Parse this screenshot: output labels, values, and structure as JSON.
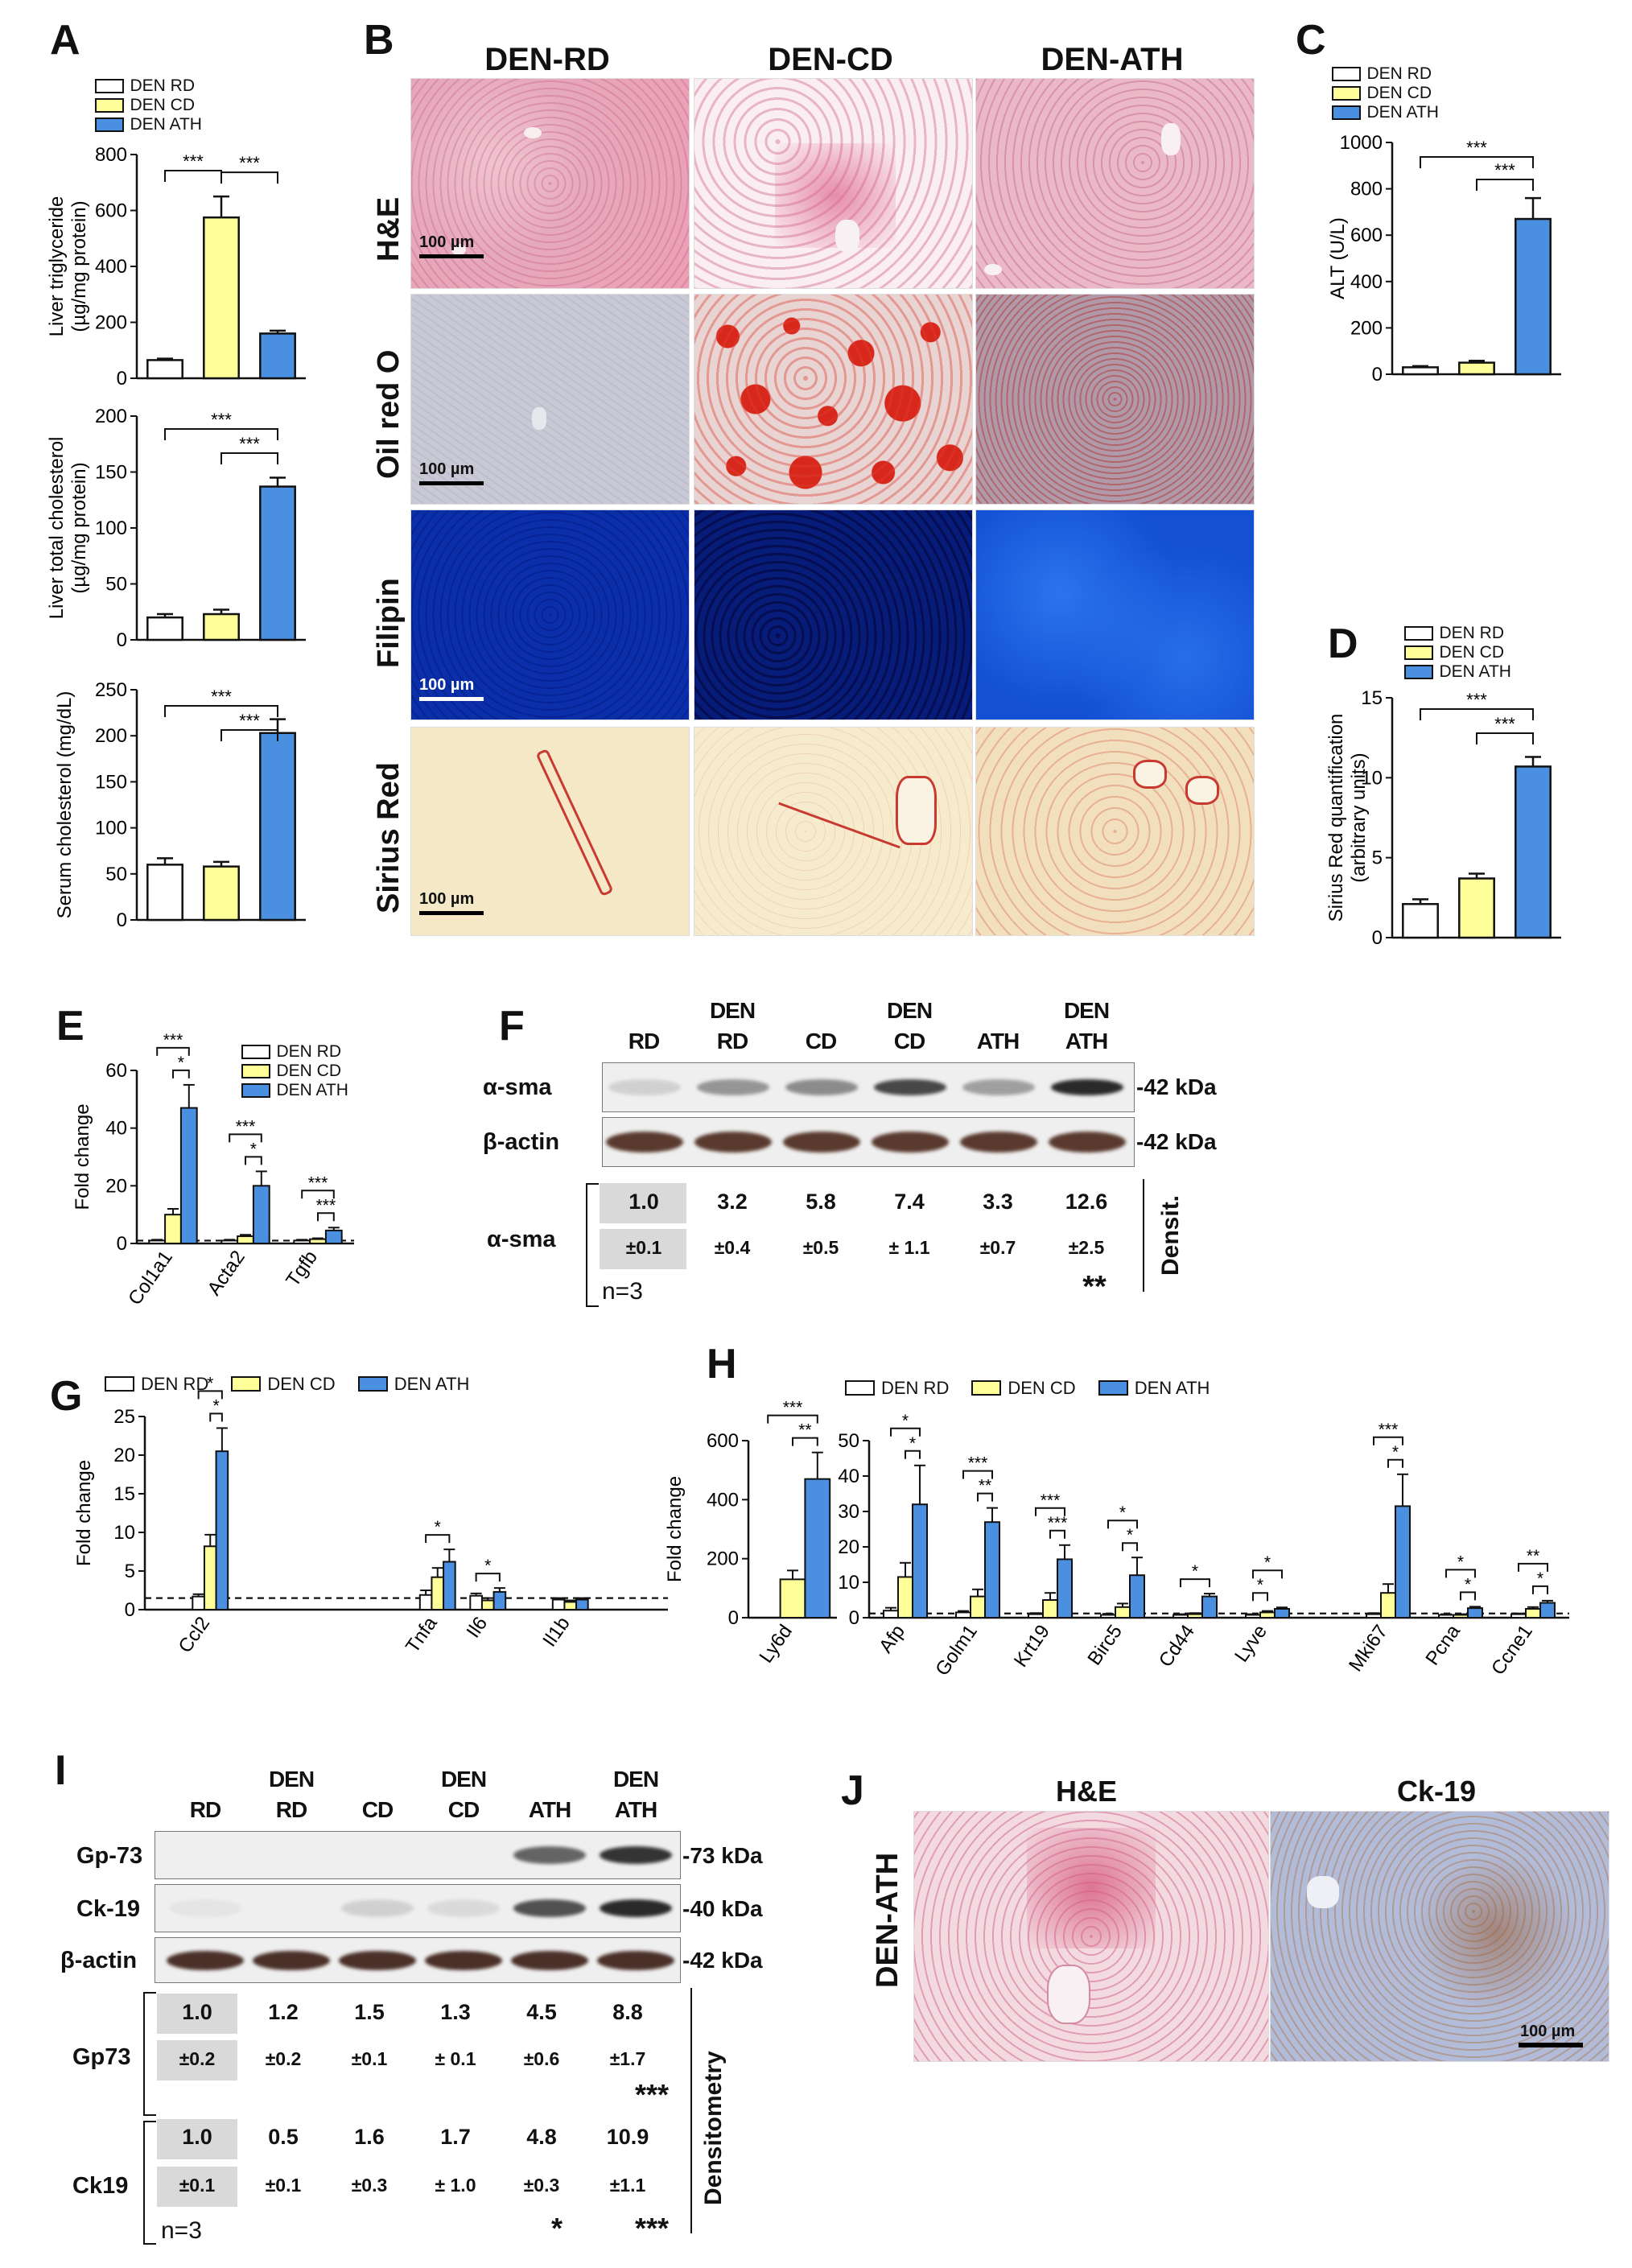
{
  "panels": {
    "A": "A",
    "B": "B",
    "C": "C",
    "D": "D",
    "E": "E",
    "F": "F",
    "G": "G",
    "H": "H",
    "I": "I",
    "J": "J"
  },
  "colors": {
    "rd": "#ffffff",
    "cd": "#ffff99",
    "ath": "#4a8fe0",
    "stroke": "#111111"
  },
  "legend3": [
    "DEN RD",
    "DEN CD",
    "DEN ATH"
  ],
  "legend_ef": [
    "DEN RD",
    "DEN CD",
    "DEN ATH"
  ],
  "legend_gh": [
    "DEN RD",
    "DEN CD",
    "DEN ATH"
  ],
  "B": {
    "columns": [
      "DEN-RD",
      "DEN-CD",
      "DEN-ATH"
    ],
    "rows": [
      "H&E",
      "Oil red O",
      "Filipin",
      "Sirius Red"
    ],
    "scale": "100 µm"
  },
  "F": {
    "lanes": [
      "RD",
      "DEN\nRD",
      "CD",
      "DEN\nCD",
      "ATH",
      "DEN\nATH"
    ],
    "lane_top": [
      "",
      "DEN",
      "",
      "DEN",
      "",
      "DEN"
    ],
    "lane_bottom": [
      "RD",
      "RD",
      "CD",
      "CD",
      "ATH",
      "ATH"
    ],
    "row_labels": [
      "α-sma",
      "β-actin"
    ],
    "kda": [
      "-42 kDa",
      "-42 kDa"
    ],
    "dens_label": "α-sma",
    "values": [
      "1.0",
      "3.2",
      "5.8",
      "7.4",
      "3.3",
      "12.6"
    ],
    "errors": [
      "±0.1",
      "±0.4",
      "±0.5",
      "± 1.1",
      "±0.7",
      "±2.5"
    ],
    "n": "n=3",
    "sig": "**",
    "side": "Densit.",
    "band_intensity": [
      0.15,
      0.45,
      0.5,
      0.85,
      0.4,
      1.0
    ]
  },
  "I": {
    "lane_top": [
      "",
      "DEN",
      "",
      "DEN",
      "",
      "DEN"
    ],
    "lane_bottom": [
      "RD",
      "RD",
      "CD",
      "CD",
      "ATH",
      "ATH"
    ],
    "row_labels": [
      "Gp-73",
      "Ck-19",
      "β-actin"
    ],
    "kda": [
      "-73 kDa",
      "-40 kDa",
      "-42 kDa"
    ],
    "gp_label": "Gp73",
    "ck_label": "Ck19",
    "gp_values": [
      "1.0",
      "1.2",
      "1.5",
      "1.3",
      "4.5",
      "8.8"
    ],
    "gp_errors": [
      "±0.2",
      "±0.2",
      "±0.1",
      "± 0.1",
      "±0.6",
      "±1.7"
    ],
    "gp_sig": "***",
    "ck_values": [
      "1.0",
      "0.5",
      "1.6",
      "1.7",
      "4.8",
      "10.9"
    ],
    "ck_errors": [
      "±0.1",
      "±0.1",
      "±0.3",
      "± 1.0",
      "±0.3",
      "±1.1"
    ],
    "ck_sig_ath": "*",
    "ck_sig_denath": "***",
    "n": "n=3",
    "side": "Densitometry",
    "gp_intensity": [
      0,
      0,
      0,
      0,
      0.7,
      0.95
    ],
    "ck_intensity": [
      0.05,
      0,
      0.15,
      0.1,
      0.8,
      1.0
    ]
  },
  "J": {
    "cols": [
      "H&E",
      "Ck-19"
    ],
    "row": "DEN-ATH",
    "scale": "100 µm"
  },
  "chart_data": [
    {
      "id": "A1",
      "type": "bar",
      "categories": [
        "DEN RD",
        "DEN CD",
        "DEN ATH"
      ],
      "values": [
        65,
        575,
        160
      ],
      "errors": [
        5,
        75,
        10
      ],
      "ylabel": [
        "Liver triglyceride",
        "(µg/mg protein)"
      ],
      "ylim": [
        0,
        800
      ],
      "yticks": [
        0,
        200,
        400,
        600,
        800
      ],
      "sig": [
        {
          "a": 0,
          "b": 1,
          "label": "***"
        },
        {
          "a": 1,
          "b": 2,
          "label": "***"
        }
      ]
    },
    {
      "id": "A2",
      "type": "bar",
      "categories": [
        "DEN RD",
        "DEN CD",
        "DEN ATH"
      ],
      "values": [
        20,
        23,
        137
      ],
      "errors": [
        3,
        4,
        8
      ],
      "ylabel": [
        "Liver total cholesterol",
        "(µg/mg protein)"
      ],
      "ylim": [
        0,
        200
      ],
      "yticks": [
        0,
        50,
        100,
        150,
        200
      ],
      "sig": [
        {
          "a": 0,
          "b": 2,
          "label": "***"
        },
        {
          "a": 1,
          "b": 2,
          "label": "***"
        }
      ]
    },
    {
      "id": "A3",
      "type": "bar",
      "categories": [
        "DEN RD",
        "DEN CD",
        "DEN ATH"
      ],
      "values": [
        60,
        58,
        203
      ],
      "errors": [
        7,
        5,
        15
      ],
      "ylabel": [
        "Serum cholesterol (mg/dL)"
      ],
      "ylim": [
        0,
        250
      ],
      "yticks": [
        0,
        50,
        100,
        150,
        200,
        250
      ],
      "sig": [
        {
          "a": 0,
          "b": 2,
          "label": "***"
        },
        {
          "a": 1,
          "b": 2,
          "label": "***"
        }
      ]
    },
    {
      "id": "C",
      "type": "bar",
      "categories": [
        "DEN RD",
        "DEN CD",
        "DEN ATH"
      ],
      "values": [
        30,
        50,
        670
      ],
      "errors": [
        5,
        8,
        90
      ],
      "ylabel": [
        "ALT  (U/L)"
      ],
      "ylim": [
        0,
        1000
      ],
      "yticks": [
        0,
        200,
        400,
        600,
        800,
        1000
      ],
      "sig": [
        {
          "a": 0,
          "b": 2,
          "label": "***"
        },
        {
          "a": 1,
          "b": 2,
          "label": "***"
        }
      ]
    },
    {
      "id": "D",
      "type": "bar",
      "categories": [
        "DEN RD",
        "DEN CD",
        "DEN ATH"
      ],
      "values": [
        2.1,
        3.7,
        10.7
      ],
      "errors": [
        0.3,
        0.3,
        0.6
      ],
      "ylabel": [
        "Sirius Red quantification",
        "(arbitrary units)"
      ],
      "ylim": [
        0,
        15
      ],
      "yticks": [
        0,
        5,
        10,
        15
      ],
      "sig": [
        {
          "a": 0,
          "b": 2,
          "label": "***"
        },
        {
          "a": 1,
          "b": 2,
          "label": "***"
        }
      ]
    },
    {
      "id": "E",
      "type": "bar",
      "categories": [
        "Col1a1",
        "Acta2",
        "Tgfb"
      ],
      "series": [
        {
          "name": "DEN RD",
          "values": [
            1,
            1,
            1
          ],
          "errors": [
            0.3,
            0.3,
            0.3
          ]
        },
        {
          "name": "DEN CD",
          "values": [
            10,
            2.5,
            1.5
          ],
          "errors": [
            2,
            0.5,
            0.3
          ]
        },
        {
          "name": "DEN ATH",
          "values": [
            47,
            20,
            4.5
          ],
          "errors": [
            8,
            5,
            1
          ]
        }
      ],
      "ylabel": "Fold change",
      "ylim": [
        0,
        60
      ],
      "yticks": [
        0,
        20,
        40,
        60
      ],
      "baseline": 1,
      "sig": [
        {
          "g": 0,
          "pairs": [
            [
              "RD",
              "ATH",
              "***"
            ],
            [
              "CD",
              "ATH",
              "*"
            ]
          ]
        },
        {
          "g": 1,
          "pairs": [
            [
              "RD",
              "ATH",
              "***"
            ],
            [
              "CD",
              "ATH",
              "*"
            ]
          ]
        },
        {
          "g": 2,
          "pairs": [
            [
              "RD",
              "ATH",
              "***"
            ],
            [
              "CD",
              "ATH",
              "***"
            ]
          ]
        }
      ]
    },
    {
      "id": "G",
      "type": "bar",
      "categories": [
        "Ccl2",
        "Tnfa",
        "Il6",
        "Il1b"
      ],
      "series": [
        {
          "name": "DEN RD",
          "values": [
            1.7,
            1.9,
            1.8,
            1.3
          ],
          "errors": [
            0.3,
            0.6,
            0.3,
            0.2
          ]
        },
        {
          "name": "DEN CD",
          "values": [
            8.2,
            4.2,
            1.2,
            1.0
          ],
          "errors": [
            1.5,
            1.2,
            0.3,
            0.2
          ]
        },
        {
          "name": "DEN ATH",
          "values": [
            20.5,
            6.2,
            2.3,
            1.3
          ],
          "errors": [
            3,
            1.6,
            0.5,
            0.2
          ]
        }
      ],
      "ylabel": "Fold change",
      "ylim": [
        0,
        25
      ],
      "yticks": [
        0,
        5,
        10,
        15,
        20,
        25
      ],
      "baseline": 1.5,
      "sig": [
        {
          "g": 0,
          "pairs": [
            [
              "RD",
              "ATH",
              "*"
            ],
            [
              "CD",
              "ATH",
              "*"
            ]
          ]
        },
        {
          "g": 1,
          "pairs": [
            [
              "RD",
              "ATH",
              "*"
            ]
          ]
        },
        {
          "g": 2,
          "pairs": [
            [
              "RD",
              "ATH",
              "*"
            ]
          ]
        }
      ]
    },
    {
      "id": "H1",
      "type": "bar",
      "categories": [
        "Ly6d"
      ],
      "series": [
        {
          "name": "DEN RD",
          "values": [
            0
          ],
          "errors": [
            0
          ]
        },
        {
          "name": "DEN CD",
          "values": [
            130
          ],
          "errors": [
            30
          ]
        },
        {
          "name": "DEN ATH",
          "values": [
            470
          ],
          "errors": [
            90
          ]
        }
      ],
      "ylabel": "Fold change",
      "ylim": [
        0,
        600
      ],
      "yticks": [
        0,
        200,
        400,
        600
      ],
      "sig": [
        {
          "g": 0,
          "pairs": [
            [
              "RD",
              "ATH",
              "***"
            ],
            [
              "CD",
              "ATH",
              "**"
            ]
          ]
        }
      ]
    },
    {
      "id": "H2",
      "type": "bar",
      "categories": [
        "Afp",
        "Golm1",
        "Krt19",
        "Birc5",
        "Cd44",
        "Lyve",
        "Mki67",
        "Pcna",
        "Ccne1"
      ],
      "series": [
        {
          "name": "DEN RD",
          "values": [
            2,
            1.5,
            1,
            0.8,
            0.8,
            0.8,
            1,
            0.8,
            1
          ],
          "errors": [
            0.8,
            0.4,
            0.3,
            0.3,
            0.2,
            0.2,
            0.3,
            0.2,
            0.2
          ]
        },
        {
          "name": "DEN CD",
          "values": [
            11.5,
            6,
            5,
            3,
            1,
            1.5,
            7,
            0.8,
            2.5
          ],
          "errors": [
            4,
            2,
            2,
            1,
            0.3,
            0.4,
            2.5,
            0.2,
            0.5
          ]
        },
        {
          "name": "DEN ATH",
          "values": [
            32,
            27,
            16.5,
            12,
            6,
            2.5,
            31.5,
            2.7,
            4.2
          ],
          "errors": [
            11,
            4,
            4,
            5,
            0.8,
            0.4,
            9,
            0.4,
            0.6
          ]
        }
      ],
      "ylim": [
        0,
        50
      ],
      "yticks": [
        0,
        10,
        20,
        30,
        40,
        50
      ],
      "baseline": 1.2,
      "gap_after": [
        5
      ],
      "sig": [
        {
          "g": 0,
          "pairs": [
            [
              "RD",
              "ATH",
              "*"
            ],
            [
              "CD",
              "ATH",
              "*"
            ]
          ]
        },
        {
          "g": 1,
          "pairs": [
            [
              "RD",
              "ATH",
              "***"
            ],
            [
              "CD",
              "ATH",
              "**"
            ]
          ]
        },
        {
          "g": 2,
          "pairs": [
            [
              "RD",
              "ATH",
              "***"
            ],
            [
              "CD",
              "ATH",
              "***"
            ]
          ]
        },
        {
          "g": 3,
          "pairs": [
            [
              "RD",
              "ATH",
              "*"
            ],
            [
              "CD",
              "ATH",
              "*"
            ]
          ]
        },
        {
          "g": 4,
          "pairs": [
            [
              "RD",
              "ATH",
              "*"
            ]
          ]
        },
        {
          "g": 5,
          "pairs": [
            [
              "RD",
              "ATH",
              "*"
            ],
            [
              "RD",
              "CD",
              "*"
            ]
          ]
        },
        {
          "g": 6,
          "pairs": [
            [
              "RD",
              "ATH",
              "***"
            ],
            [
              "CD",
              "ATH",
              "*"
            ]
          ]
        },
        {
          "g": 7,
          "pairs": [
            [
              "RD",
              "ATH",
              "*"
            ],
            [
              "CD",
              "ATH",
              "*"
            ]
          ]
        },
        {
          "g": 8,
          "pairs": [
            [
              "RD",
              "ATH",
              "**"
            ],
            [
              "CD",
              "ATH",
              "*"
            ]
          ]
        }
      ]
    }
  ]
}
